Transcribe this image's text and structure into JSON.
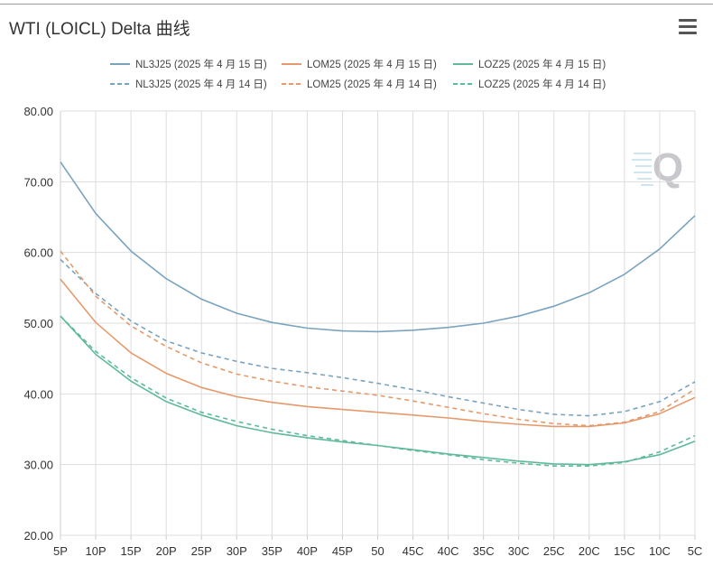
{
  "header": {
    "title": "WTI (LOICL) Delta 曲线",
    "menu_icon": "hamburger-menu-icon"
  },
  "watermark": {
    "text": "Q",
    "icon": "q-logo-icon"
  },
  "colors": {
    "nl3j25": "#7aa3be",
    "lom25": "#e49a6c",
    "loz25": "#5fba9a",
    "grid": "#dddddd",
    "axis": "#cccccc"
  },
  "chart_data": {
    "type": "line",
    "title": "WTI (LOICL) Delta 曲线",
    "xlabel": "",
    "ylabel": "",
    "ylim": [
      20,
      80
    ],
    "yticks": [
      "20.00",
      "30.00",
      "40.00",
      "50.00",
      "60.00",
      "70.00",
      "80.00"
    ],
    "grid": true,
    "legend_position": "top",
    "x": [
      "5P",
      "10P",
      "15P",
      "20P",
      "25P",
      "30P",
      "35P",
      "40P",
      "45P",
      "50",
      "45C",
      "40C",
      "35C",
      "30C",
      "25C",
      "20C",
      "15C",
      "10C",
      "5C"
    ],
    "series": [
      {
        "name": "NL3J25 (2025 年 4 月 15 日)",
        "color": "#7aa3be",
        "dashed": false,
        "values": [
          72.8,
          65.5,
          60.2,
          56.3,
          53.4,
          51.4,
          50.1,
          49.3,
          48.9,
          48.8,
          49.0,
          49.4,
          50.0,
          51.0,
          52.4,
          54.3,
          56.9,
          60.5,
          65.2
        ]
      },
      {
        "name": "LOM25 (2025 年 4 月 15 日)",
        "color": "#e49a6c",
        "dashed": false,
        "values": [
          56.2,
          50.1,
          45.8,
          42.9,
          40.9,
          39.6,
          38.8,
          38.2,
          37.8,
          37.4,
          37.0,
          36.6,
          36.1,
          35.7,
          35.4,
          35.4,
          35.9,
          37.2,
          39.5
        ]
      },
      {
        "name": "LOZ25 (2025 年 4 月 15 日)",
        "color": "#5fba9a",
        "dashed": false,
        "values": [
          51.0,
          45.6,
          41.8,
          38.9,
          37.0,
          35.5,
          34.5,
          33.8,
          33.2,
          32.7,
          32.1,
          31.5,
          31.0,
          30.5,
          30.1,
          30.0,
          30.4,
          31.4,
          33.3
        ]
      },
      {
        "name": "NL3J25 (2025 年 4 月 14 日)",
        "color": "#7aa3be",
        "dashed": true,
        "values": [
          59.0,
          54.2,
          50.3,
          47.5,
          45.8,
          44.6,
          43.6,
          43.0,
          42.3,
          41.5,
          40.6,
          39.6,
          38.7,
          37.8,
          37.1,
          36.9,
          37.5,
          38.9,
          41.7
        ]
      },
      {
        "name": "LOM25 (2025 年 4 月 14 日)",
        "color": "#e49a6c",
        "dashed": true,
        "values": [
          60.2,
          53.8,
          49.6,
          46.7,
          44.4,
          42.8,
          41.8,
          41.0,
          40.4,
          39.8,
          39.0,
          38.1,
          37.2,
          36.4,
          35.8,
          35.5,
          36.0,
          37.5,
          40.7
        ]
      },
      {
        "name": "LOZ25 (2025 年 4 月 14 日)",
        "color": "#5fba9a",
        "dashed": true,
        "values": [
          51.0,
          46.0,
          42.3,
          39.4,
          37.4,
          36.1,
          35.0,
          34.1,
          33.4,
          32.7,
          32.0,
          31.4,
          30.7,
          30.2,
          29.8,
          29.8,
          30.3,
          31.8,
          34.1
        ]
      }
    ]
  }
}
